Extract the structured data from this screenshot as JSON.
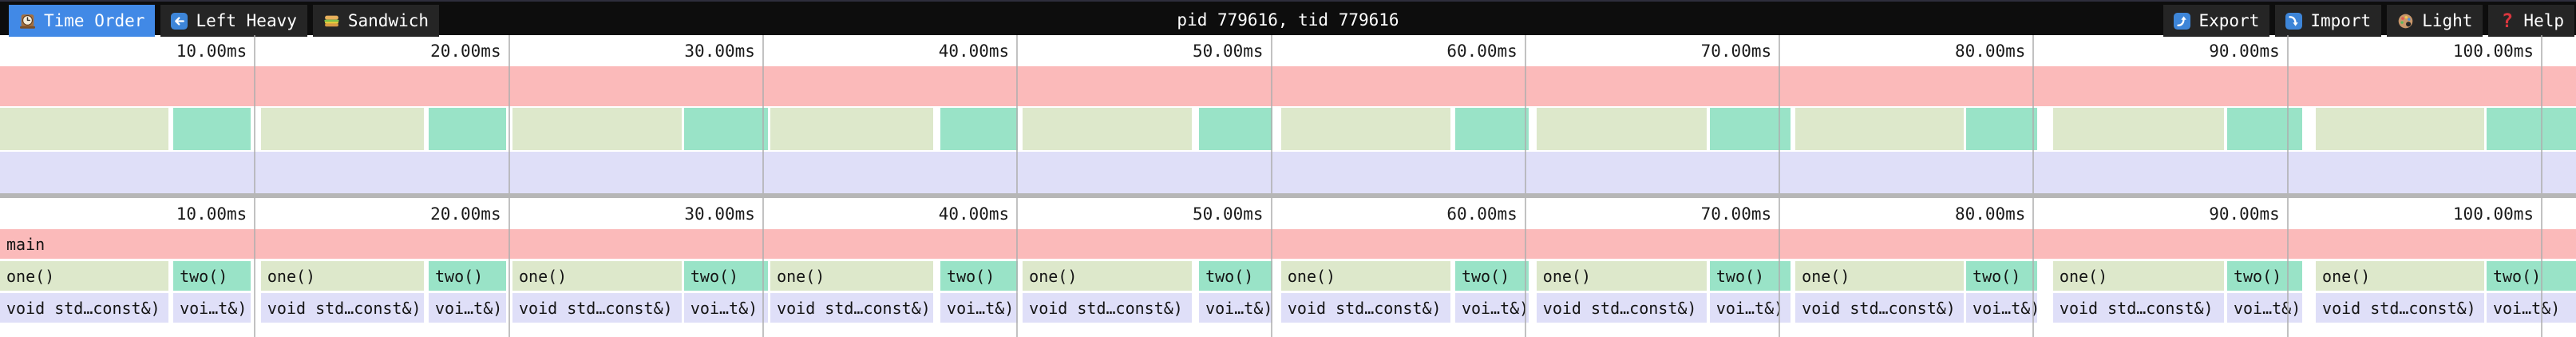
{
  "toolbar": {
    "title": "pid 779616, tid 779616",
    "tabs": [
      {
        "id": "time-order",
        "label": "Time Order",
        "icon": "clock-icon",
        "active": true
      },
      {
        "id": "left-heavy",
        "label": "Left Heavy",
        "icon": "left-arrow-icon",
        "active": false
      },
      {
        "id": "sandwich",
        "label": "Sandwich",
        "icon": "sandwich-icon",
        "active": false
      }
    ],
    "actions": [
      {
        "id": "export",
        "label": "Export",
        "icon": "export-icon"
      },
      {
        "id": "import",
        "label": "Import",
        "icon": "import-icon"
      },
      {
        "id": "theme",
        "label": "Light",
        "icon": "palette-icon"
      },
      {
        "id": "help",
        "label": "Help",
        "icon": "help-icon"
      }
    ]
  },
  "timeline": {
    "total_ms": 101.38,
    "ticks": [
      {
        "ms": 10,
        "label": "10.00ms"
      },
      {
        "ms": 20,
        "label": "20.00ms"
      },
      {
        "ms": 30,
        "label": "30.00ms"
      },
      {
        "ms": 40,
        "label": "40.00ms"
      },
      {
        "ms": 50,
        "label": "50.00ms"
      },
      {
        "ms": 60,
        "label": "60.00ms"
      },
      {
        "ms": 70,
        "label": "70.00ms"
      },
      {
        "ms": 80,
        "label": "80.00ms"
      },
      {
        "ms": 90,
        "label": "90.00ms"
      },
      {
        "ms": 100,
        "label": "100.00ms"
      }
    ]
  },
  "flamegraph": {
    "root": {
      "label": "main",
      "start": 0.0,
      "end": 101.7
    },
    "labels": {
      "depth1_one": "one()",
      "depth1_two": "two()",
      "depth2_one": "void std…const&)",
      "depth2_two": "voi…t&)"
    },
    "cycles": [
      {
        "one_start": 0.0,
        "one_end": 6.63,
        "two_start": 6.82,
        "two_end": 9.87
      },
      {
        "one_start": 10.27,
        "one_end": 16.68,
        "two_start": 16.87,
        "two_end": 19.92
      },
      {
        "one_start": 20.17,
        "one_end": 26.83,
        "two_start": 26.92,
        "two_end": 30.22
      },
      {
        "one_start": 30.32,
        "one_end": 36.74,
        "two_start": 37.01,
        "two_end": 40.06
      },
      {
        "one_start": 40.25,
        "one_end": 46.91,
        "two_start": 47.19,
        "two_end": 50.08
      },
      {
        "one_start": 50.42,
        "one_end": 57.08,
        "two_start": 57.27,
        "two_end": 60.16
      },
      {
        "one_start": 60.47,
        "one_end": 67.17,
        "two_start": 67.29,
        "two_end": 70.47
      },
      {
        "one_start": 70.66,
        "one_end": 77.29,
        "two_start": 77.38,
        "two_end": 80.18
      },
      {
        "one_start": 80.8,
        "one_end": 87.53,
        "two_start": 87.65,
        "two_end": 90.61
      },
      {
        "one_start": 91.14,
        "one_end": 97.77,
        "two_start": 97.86,
        "two_end": 101.7
      }
    ]
  },
  "colors": {
    "frame_main": "#fbbaba",
    "frame_one": "#dde8cb",
    "frame_two": "#99e3c7",
    "frame_sleep": "#dfdff8",
    "active_tab": "#4189e6",
    "toolbar_bg": "#0d0d0d",
    "button_bg": "#252525",
    "top_strip": "#2e2e3c",
    "gridline": "#aeaeae",
    "divider": "#b6b6b6"
  }
}
